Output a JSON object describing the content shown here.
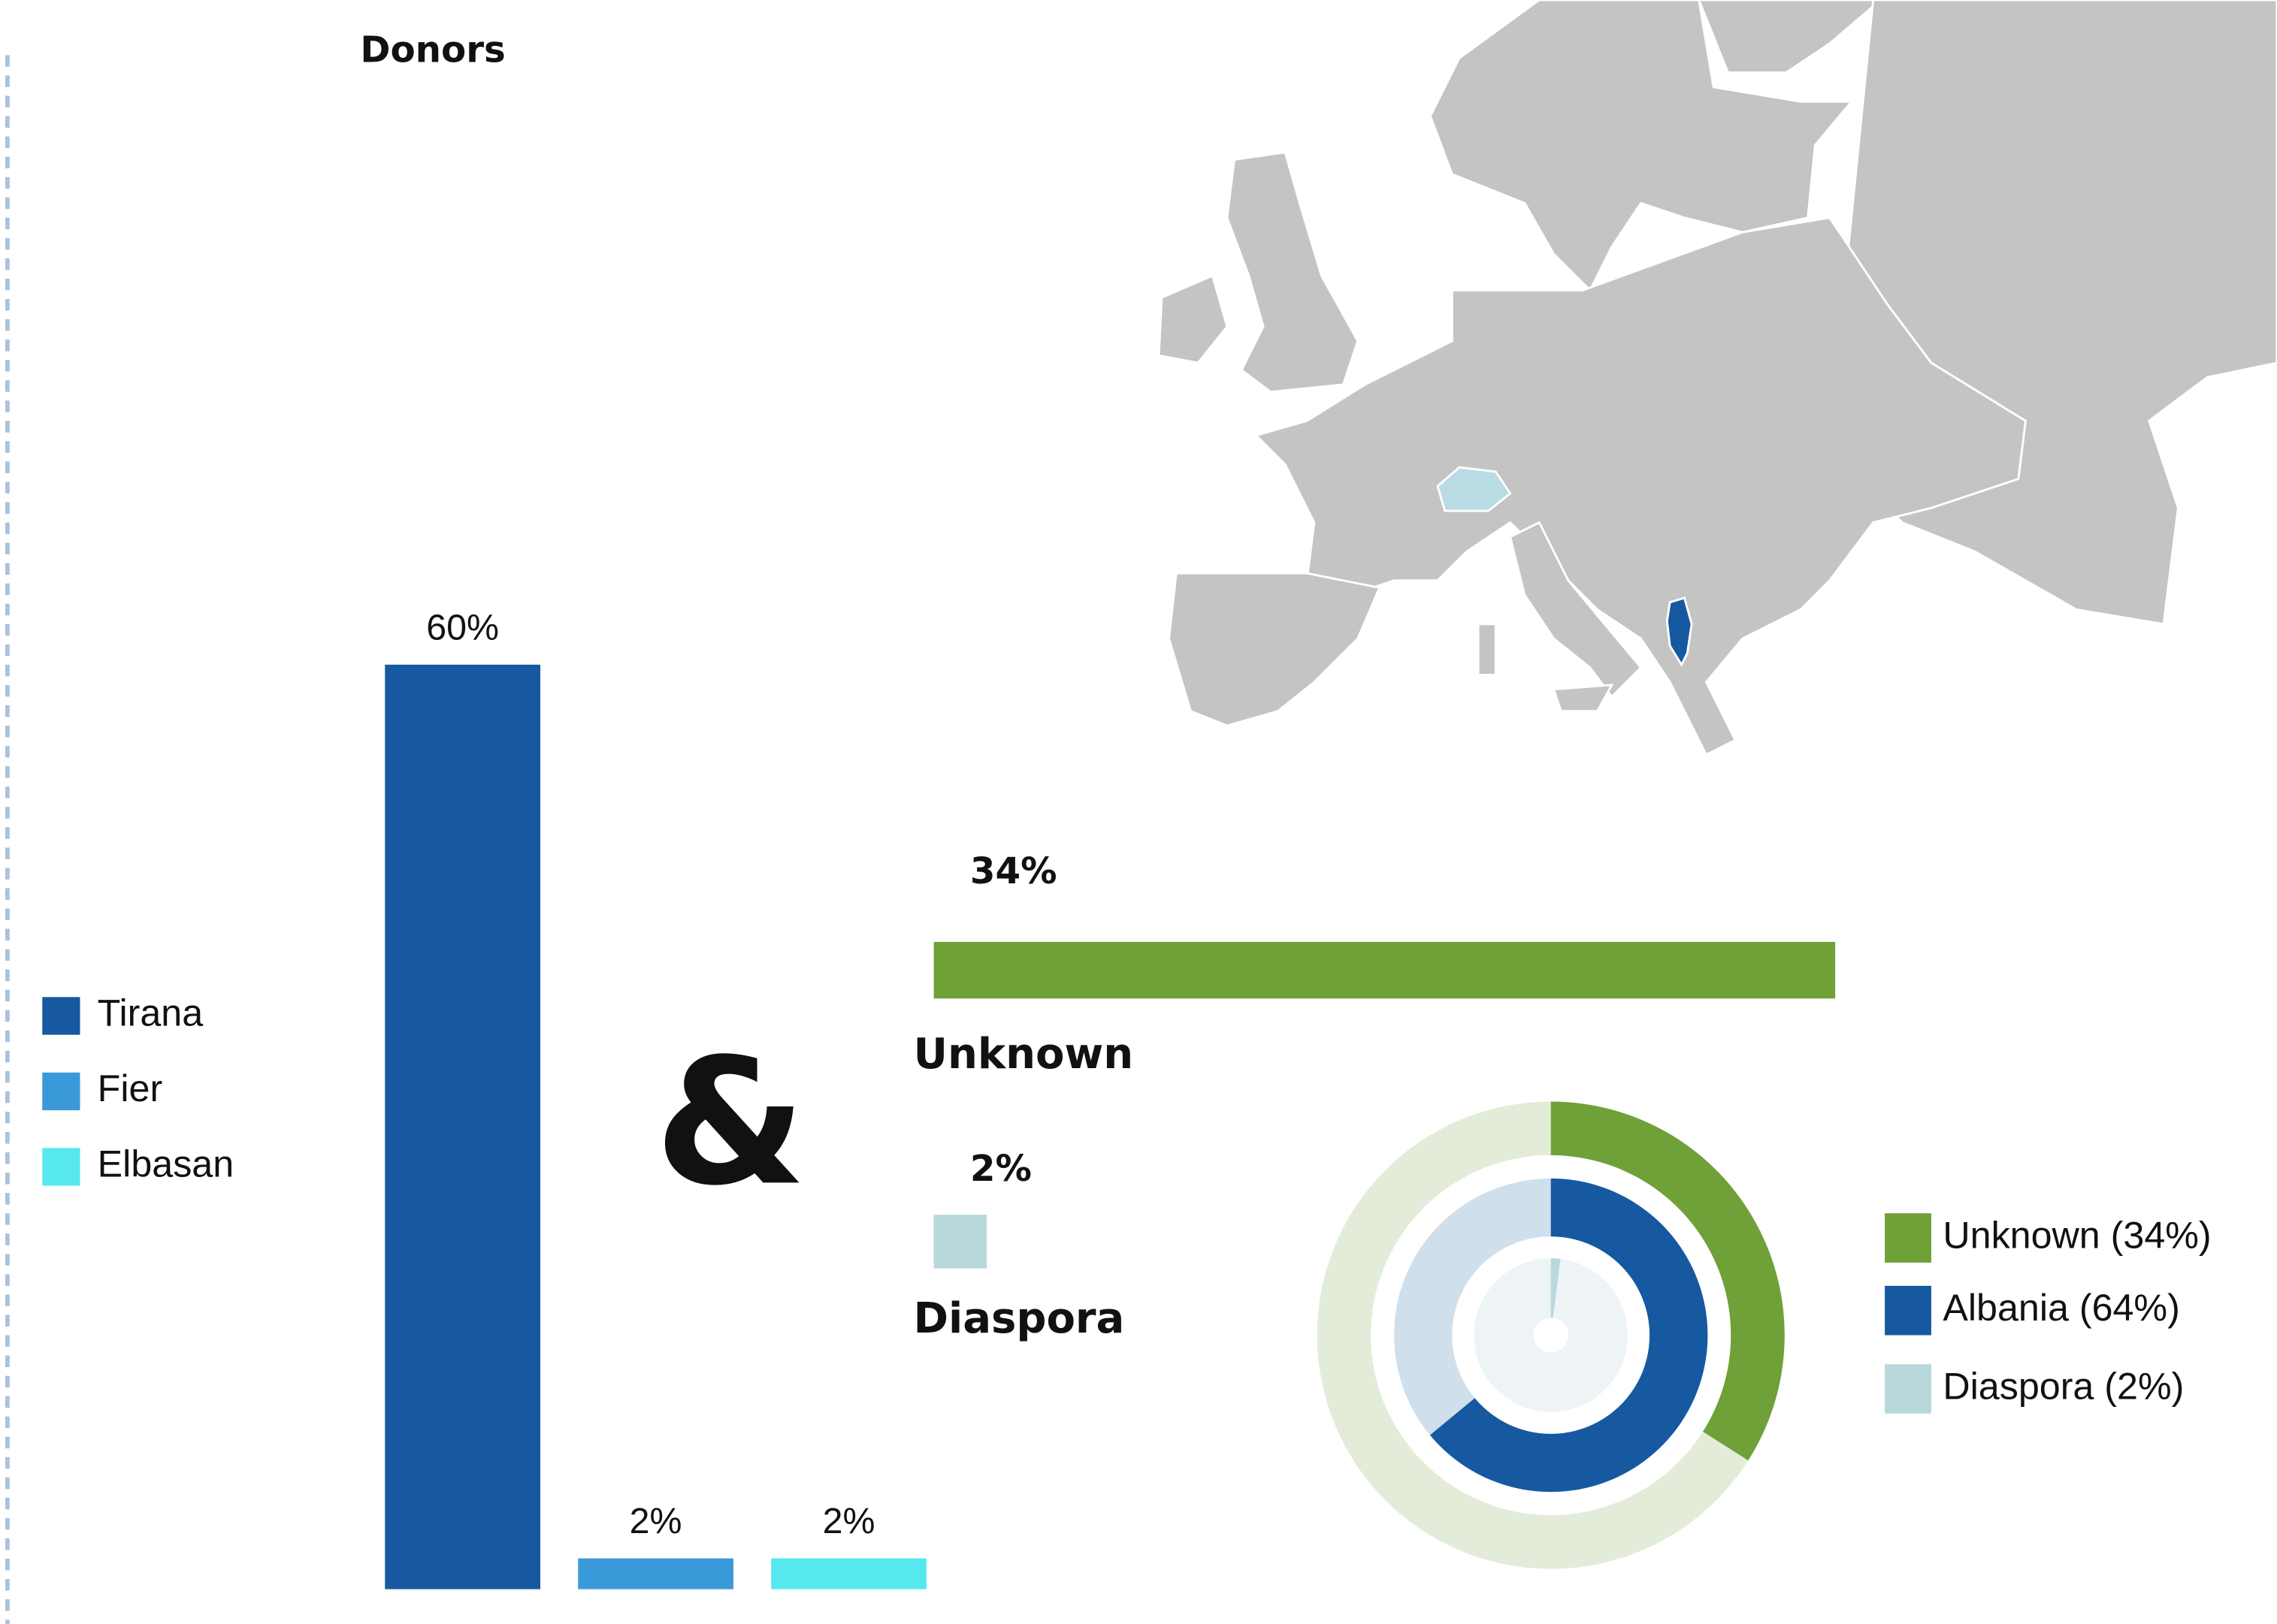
{
  "chart_data": [
    {
      "type": "bar",
      "title": "Donors",
      "categories": [
        "Tirana",
        "Fier",
        "Elbasan"
      ],
      "values": [
        60,
        2,
        2
      ],
      "value_labels": [
        "60%",
        "2%",
        "2%"
      ],
      "colors": [
        "#1659a0",
        "#3a9ad9",
        "#56e8ee"
      ]
    },
    {
      "type": "hbar",
      "categories": [
        "Unknown",
        "Diaspora"
      ],
      "values": [
        34,
        2
      ],
      "value_labels": [
        "34%",
        "2%"
      ],
      "colors": [
        "#70a038",
        "#b8d8dc"
      ]
    },
    {
      "type": "radial",
      "series": [
        {
          "name": "Unknown (34%)",
          "color": "#70a038",
          "values": [
            34
          ]
        },
        {
          "name": "Albania (64%)",
          "color": "#1659a0",
          "values": [
            64
          ]
        },
        {
          "name": "Diaspora  (2%)",
          "color": "#b8d8dc",
          "values": [
            2
          ]
        }
      ]
    }
  ],
  "separator": "&"
}
